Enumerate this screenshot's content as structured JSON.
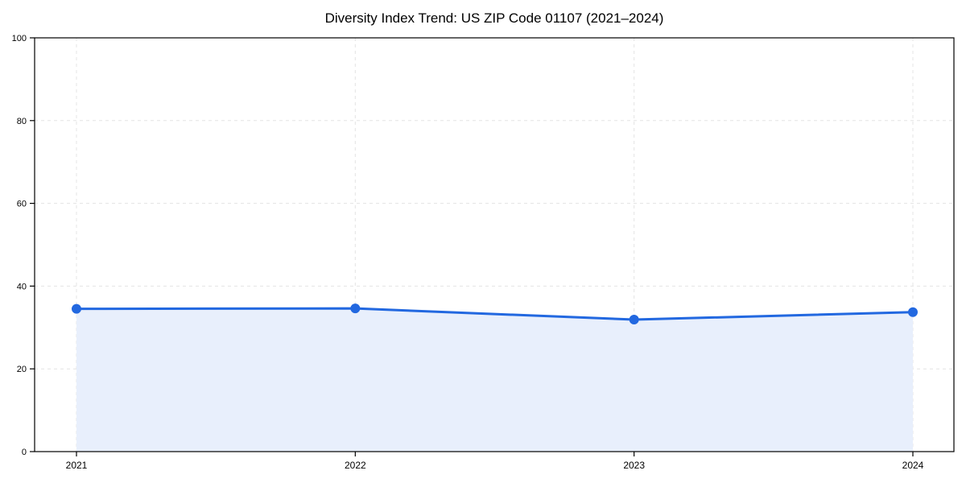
{
  "chart_data": {
    "type": "line",
    "title": "Diversity Index Trend: US ZIP Code 01107 (2021–2024)",
    "x": [
      2021,
      2022,
      2023,
      2024
    ],
    "x_tick_labels": [
      "2021",
      "2022",
      "2023",
      "2024"
    ],
    "series": [
      {
        "name": "Diversity Index",
        "values": [
          34.5,
          34.6,
          31.9,
          33.7
        ]
      }
    ],
    "xlabel": "",
    "ylabel": "",
    "ylim": [
      0,
      100
    ],
    "yticks": [
      0,
      20,
      40,
      60,
      80,
      100
    ],
    "grid": "dashed both axes",
    "legend": "none",
    "area_fill": true,
    "colors": {
      "line": "#2268e0",
      "marker": "#2268e0",
      "area": "#e8effc",
      "grid": "#e4e4e4",
      "axis": "#000000",
      "tick_label": "#000000",
      "background": "#ffffff"
    }
  }
}
